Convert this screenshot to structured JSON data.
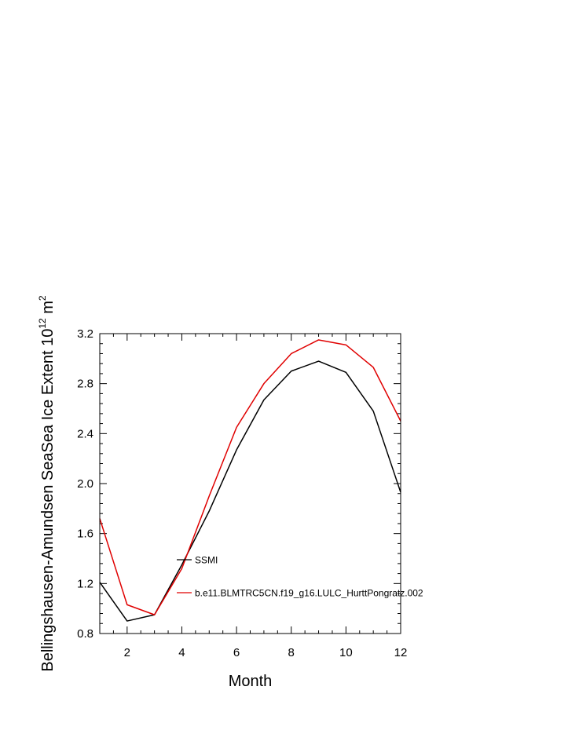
{
  "chart_data": {
    "type": "line",
    "title": "",
    "xlabel": "Month",
    "ylabel": {
      "prefix": "Bellingshausen-Amundsen SeaSea Ice Extent 10",
      "sup1": "12",
      "unit": " m",
      "sup2": "2"
    },
    "xlim": [
      1,
      12
    ],
    "ylim": [
      0.8,
      3.2
    ],
    "xticks": [
      2,
      4,
      6,
      8,
      10,
      12
    ],
    "xtick_labels": [
      "2",
      "4",
      "6",
      "8",
      "10",
      "12"
    ],
    "yticks": [
      0.8,
      1.2,
      1.6,
      2.0,
      2.4,
      2.8,
      3.2
    ],
    "ytick_labels": [
      "0.8",
      "1.2",
      "1.6",
      "2.0",
      "2.4",
      "2.8",
      "3.2"
    ],
    "x": [
      1,
      2,
      3,
      4,
      5,
      6,
      7,
      8,
      9,
      10,
      11,
      12
    ],
    "series": [
      {
        "name": "SSMI",
        "color": "#000000",
        "values": [
          1.21,
          0.9,
          0.95,
          1.35,
          1.78,
          2.27,
          2.67,
          2.9,
          2.98,
          2.89,
          2.58,
          1.93
        ]
      },
      {
        "name": "b.e11.BLMTRC5CN.f19_g16.LULC_HurttPongratz.002",
        "color": "#e00000",
        "values": [
          1.72,
          1.03,
          0.95,
          1.32,
          1.9,
          2.45,
          2.8,
          3.04,
          3.15,
          3.11,
          2.93,
          2.5
        ]
      }
    ],
    "legend": "inside-lower-center",
    "grid": false
  }
}
